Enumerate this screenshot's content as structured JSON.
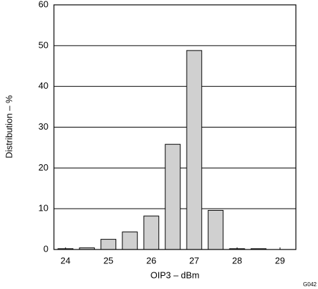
{
  "chart_data": {
    "type": "bar",
    "x_label": "OIP3 – dBm",
    "y_label": "Distribution – %",
    "figure_id": "G042",
    "x": [
      24,
      24.5,
      25,
      25.5,
      26,
      26.5,
      27,
      27.5,
      28,
      28.5
    ],
    "values": [
      0.2,
      0.4,
      2.5,
      4.3,
      8.2,
      25.8,
      48.8,
      9.6,
      0.2,
      0.2
    ],
    "color": "#d0d0d0",
    "xlim": [
      23.73,
      29.37
    ],
    "xticks": [
      24,
      25,
      26,
      27,
      28,
      29
    ],
    "ylim": [
      0,
      60
    ],
    "yticks": [
      0,
      10,
      20,
      30,
      40,
      50,
      60
    ],
    "grid": true
  }
}
